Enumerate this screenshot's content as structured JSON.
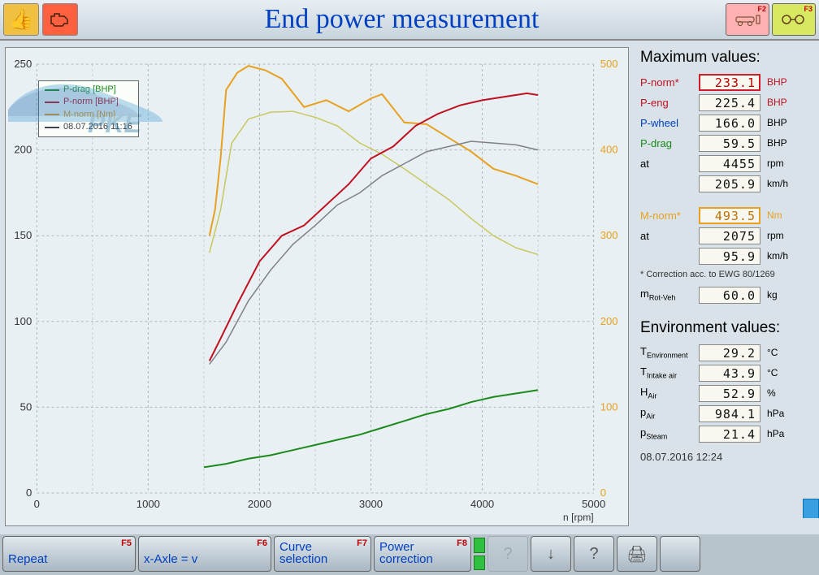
{
  "header": {
    "title": "End power measurement",
    "left_icons": [
      "thumbs-up",
      "engine"
    ],
    "right_fkeys": [
      {
        "label": "F2",
        "class": "red",
        "icon": "car"
      },
      {
        "label": "F3",
        "class": "yellow",
        "icon": "wheels"
      }
    ]
  },
  "chart": {
    "type": "line",
    "background_color": "#e8f0f4",
    "grid_color": "#b0b8bc",
    "grid_dash": "3,3",
    "xlabel": "n [rpm]",
    "xlim": [
      0,
      5000
    ],
    "xtick_step": 1000,
    "ylim_left": [
      0,
      250
    ],
    "ytick_step_left": 50,
    "ylim_right": [
      0,
      500
    ],
    "ytick_step_right": 100,
    "axis_left_color": "#444",
    "axis_right_color": "#e8a020",
    "legend": {
      "rows": [
        {
          "label": "P-drag [BHP]",
          "color": "#1b8a1b"
        },
        {
          "label": "P-norm [BHP]",
          "color": "#c01020"
        },
        {
          "label": "M-norm [Nm]",
          "color": "#e8a020"
        },
        {
          "label": "08.07.2016 11:16",
          "color": "#404048"
        }
      ]
    },
    "series": [
      {
        "name": "M-norm",
        "color": "#e8a020",
        "width": 2,
        "axis": "right",
        "points": [
          [
            1550,
            300
          ],
          [
            1600,
            330
          ],
          [
            1650,
            390
          ],
          [
            1700,
            470
          ],
          [
            1800,
            490
          ],
          [
            1900,
            498
          ],
          [
            2050,
            493
          ],
          [
            2200,
            483
          ],
          [
            2400,
            450
          ],
          [
            2600,
            458
          ],
          [
            2800,
            445
          ],
          [
            3000,
            460
          ],
          [
            3100,
            465
          ],
          [
            3300,
            432
          ],
          [
            3500,
            430
          ],
          [
            3700,
            414
          ],
          [
            3900,
            398
          ],
          [
            4100,
            378
          ],
          [
            4300,
            370
          ],
          [
            4500,
            360
          ]
        ]
      },
      {
        "name": "M-norm-prev",
        "color": "#c8c860",
        "width": 1.5,
        "axis": "right",
        "points": [
          [
            1550,
            280
          ],
          [
            1650,
            330
          ],
          [
            1750,
            408
          ],
          [
            1900,
            436
          ],
          [
            2100,
            444
          ],
          [
            2300,
            445
          ],
          [
            2500,
            438
          ],
          [
            2700,
            428
          ],
          [
            2900,
            408
          ],
          [
            3100,
            395
          ],
          [
            3300,
            378
          ],
          [
            3500,
            360
          ],
          [
            3700,
            342
          ],
          [
            3900,
            320
          ],
          [
            4100,
            300
          ],
          [
            4300,
            286
          ],
          [
            4500,
            278
          ]
        ]
      },
      {
        "name": "P-norm",
        "color": "#c01020",
        "width": 2,
        "axis": "left",
        "points": [
          [
            1550,
            77
          ],
          [
            1650,
            90
          ],
          [
            1800,
            110
          ],
          [
            2000,
            135
          ],
          [
            2200,
            150
          ],
          [
            2400,
            156
          ],
          [
            2600,
            168
          ],
          [
            2800,
            180
          ],
          [
            3000,
            195
          ],
          [
            3200,
            202
          ],
          [
            3400,
            214
          ],
          [
            3600,
            221
          ],
          [
            3800,
            226
          ],
          [
            4000,
            229
          ],
          [
            4200,
            231
          ],
          [
            4400,
            233
          ],
          [
            4500,
            232
          ]
        ]
      },
      {
        "name": "P-norm-prev",
        "color": "#808088",
        "width": 1.5,
        "axis": "left",
        "points": [
          [
            1550,
            75
          ],
          [
            1700,
            88
          ],
          [
            1900,
            112
          ],
          [
            2100,
            130
          ],
          [
            2300,
            145
          ],
          [
            2500,
            156
          ],
          [
            2700,
            168
          ],
          [
            2900,
            175
          ],
          [
            3100,
            185
          ],
          [
            3300,
            192
          ],
          [
            3500,
            199
          ],
          [
            3700,
            202
          ],
          [
            3900,
            205
          ],
          [
            4100,
            204
          ],
          [
            4300,
            203
          ],
          [
            4500,
            200
          ]
        ]
      },
      {
        "name": "P-drag",
        "color": "#1b8a1b",
        "width": 2,
        "axis": "left",
        "points": [
          [
            1500,
            15
          ],
          [
            1700,
            17
          ],
          [
            1900,
            20
          ],
          [
            2100,
            22
          ],
          [
            2300,
            25
          ],
          [
            2500,
            28
          ],
          [
            2700,
            31
          ],
          [
            2900,
            34
          ],
          [
            3100,
            38
          ],
          [
            3300,
            42
          ],
          [
            3500,
            46
          ],
          [
            3700,
            49
          ],
          [
            3900,
            53
          ],
          [
            4100,
            56
          ],
          [
            4300,
            58
          ],
          [
            4500,
            60
          ]
        ]
      }
    ]
  },
  "max_values": {
    "title": "Maximum values:",
    "rows": [
      {
        "label": "P-norm*",
        "value": "233.1",
        "unit": "BHP",
        "label_color": "#c01020",
        "highlight": "red",
        "unit_color": "#c01020"
      },
      {
        "label": "P-eng",
        "value": "225.4",
        "unit": "BHP",
        "label_color": "#c01020",
        "unit_color": "#c01020"
      },
      {
        "label": "P-wheel",
        "value": "166.0",
        "unit": "BHP",
        "label_color": "#0040c0"
      },
      {
        "label": "P-drag",
        "value": "59.5",
        "unit": "BHP",
        "label_color": "#1b8a1b"
      },
      {
        "label": "at",
        "value": "4455",
        "unit": "rpm"
      },
      {
        "label": "",
        "value": "205.9",
        "unit": "km/h"
      }
    ],
    "rows2": [
      {
        "label": "M-norm*",
        "value": "493.5",
        "unit": "Nm",
        "label_color": "#e8a020",
        "highlight": "orange",
        "unit_color": "#e8a020"
      },
      {
        "label": "at",
        "value": "2075",
        "unit": "rpm"
      },
      {
        "label": "",
        "value": "95.9",
        "unit": "km/h"
      }
    ],
    "correction_note": "* Correction acc. to EWG 80/1269",
    "rot_veh_label": "mRot-Veh",
    "rot_veh_value": "60.0",
    "rot_veh_unit": "kg"
  },
  "env_values": {
    "title": "Environment values:",
    "rows": [
      {
        "label": "T",
        "sub": "Environment",
        "value": "29.2",
        "unit": "°C"
      },
      {
        "label": "T",
        "sub": "Intake air",
        "value": "43.9",
        "unit": "°C"
      },
      {
        "label": "H",
        "sub": "Air",
        "value": "52.9",
        "unit": "%"
      },
      {
        "label": "p",
        "sub": "Air",
        "value": "984.1",
        "unit": "hPa"
      },
      {
        "label": "p",
        "sub": "Steam",
        "value": "21.4",
        "unit": "hPa"
      }
    ]
  },
  "timestamp": "08.07.2016  12:24",
  "footer": {
    "buttons": [
      {
        "label": "Repeat",
        "fkey": "F5",
        "class": "wide"
      },
      {
        "label": "x-Axle = v",
        "fkey": "F6",
        "class": "wide"
      },
      {
        "label": "Curve\nselection",
        "fkey": "F7",
        "class": "mid"
      },
      {
        "label": "Power\ncorrection",
        "fkey": "F8",
        "class": "mid"
      }
    ],
    "icons": [
      {
        "name": "question-dim",
        "glyph": "?",
        "opacity": 0.25
      },
      {
        "name": "down-arrow",
        "glyph": "↓"
      },
      {
        "name": "question",
        "glyph": "?"
      },
      {
        "name": "printer",
        "glyph": "🖨"
      },
      {
        "name": "blank",
        "glyph": ""
      }
    ]
  }
}
